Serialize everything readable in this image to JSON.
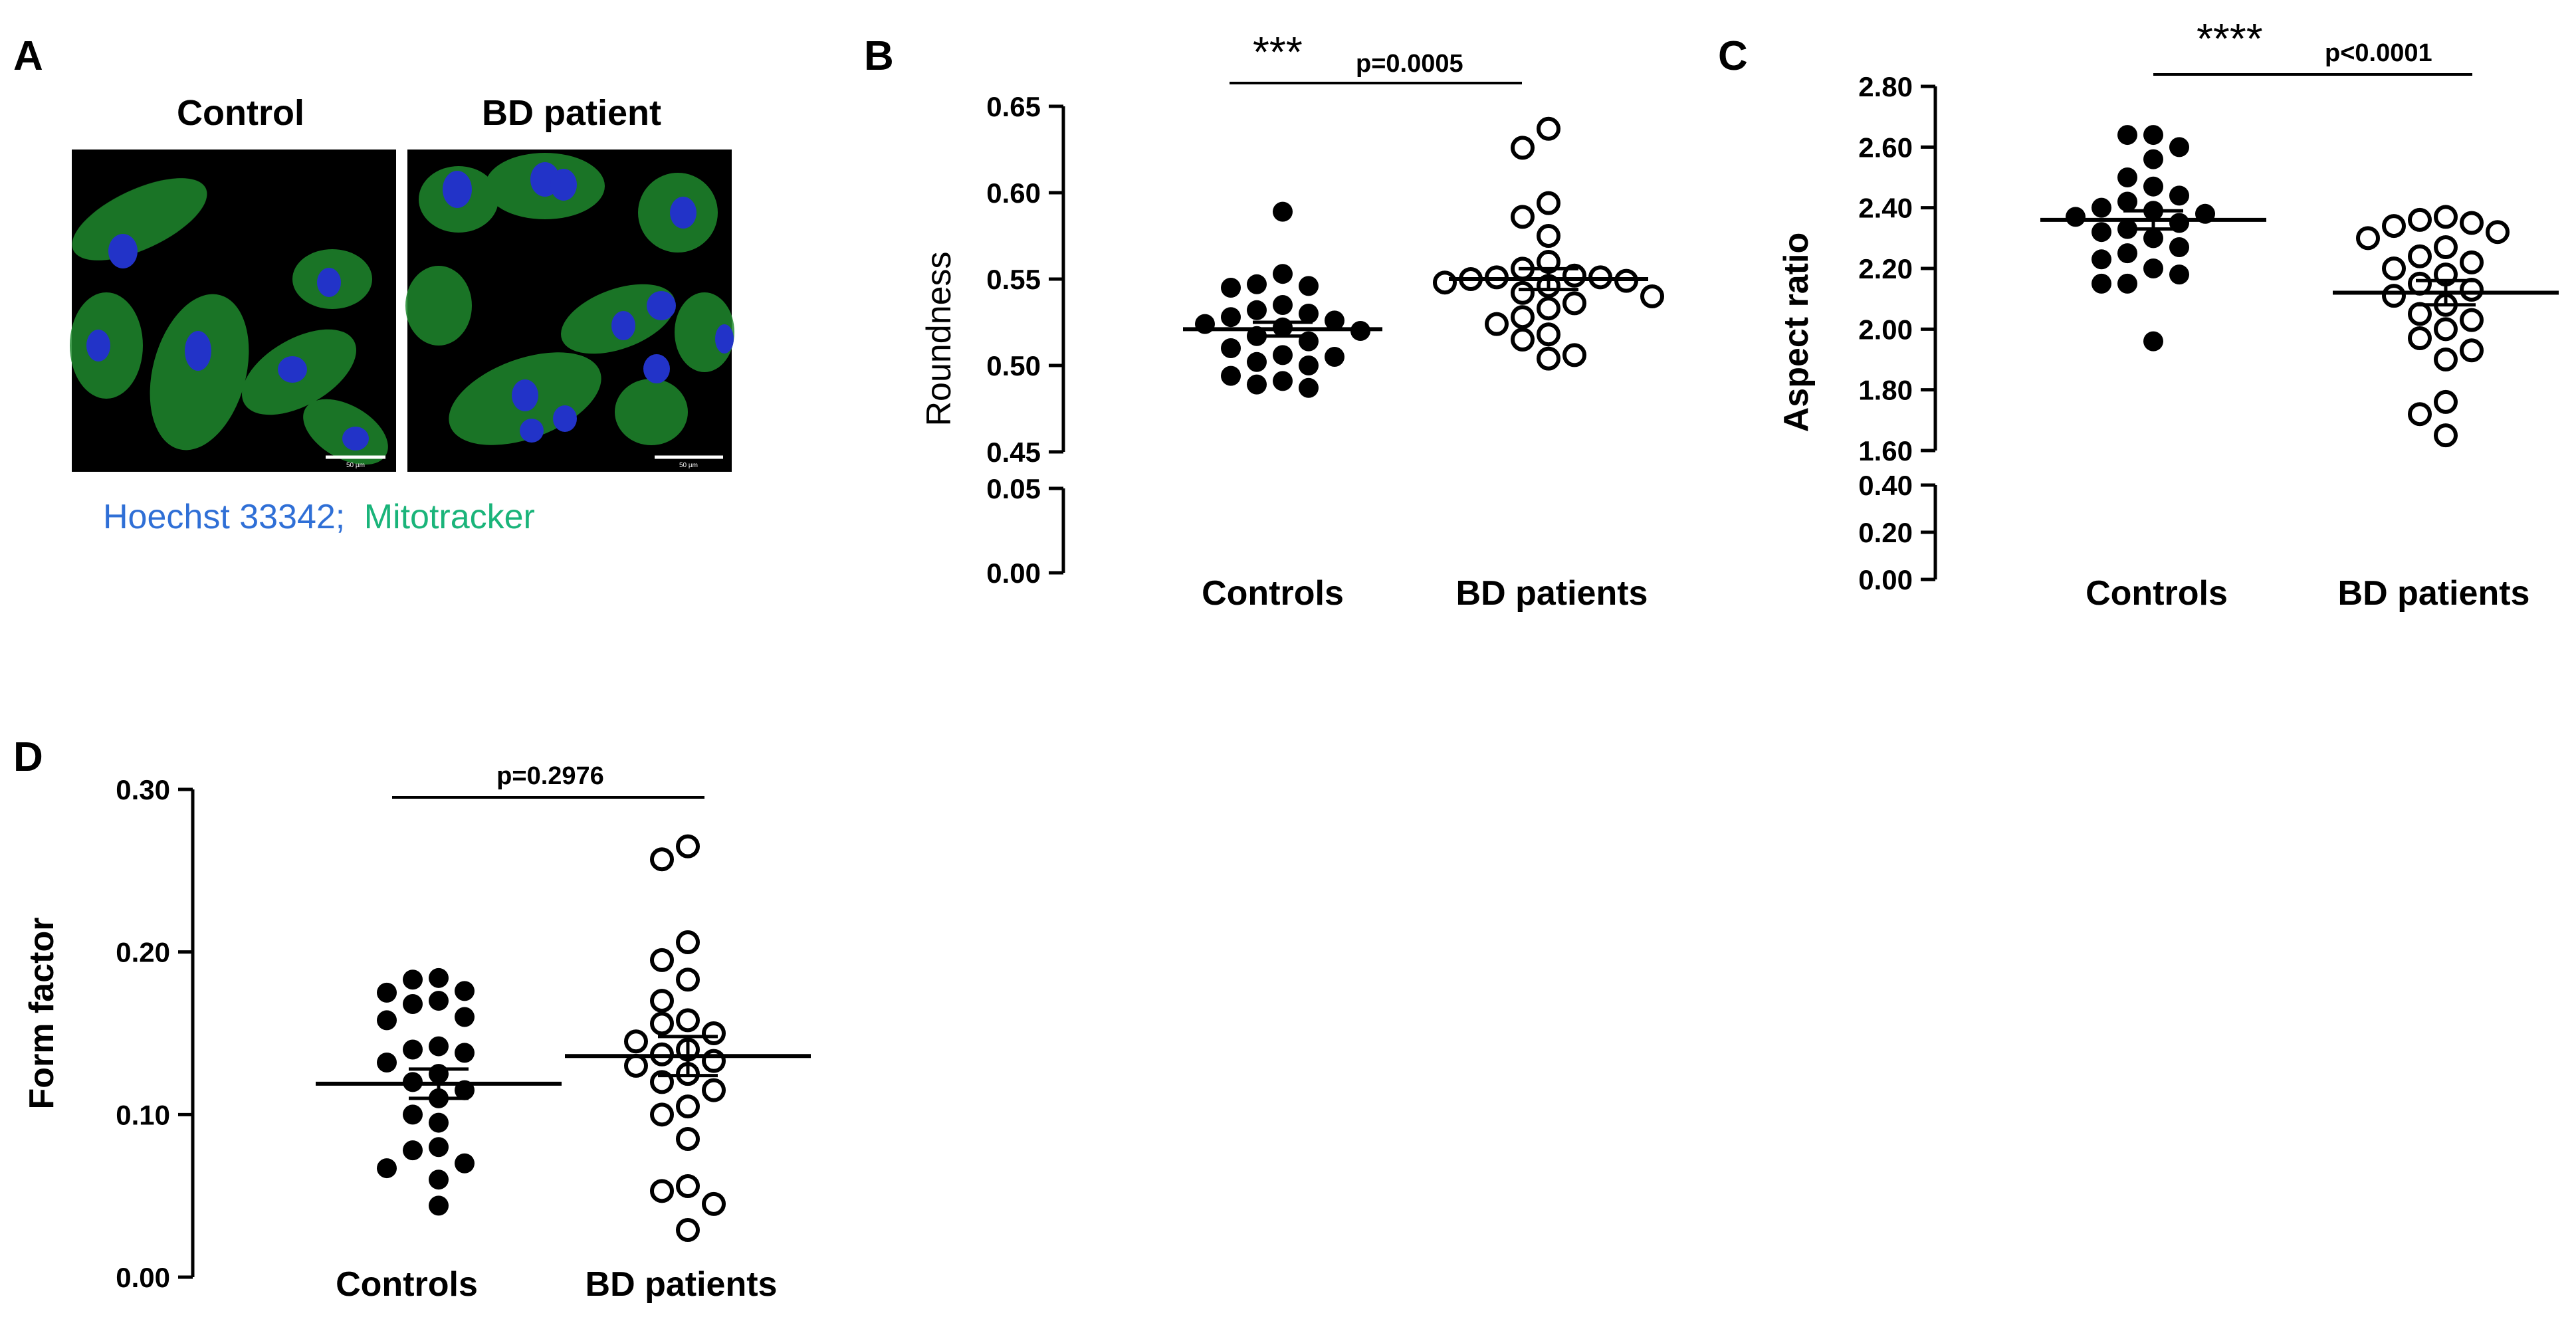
{
  "panel_a": {
    "letter": "A",
    "title_left": "Control",
    "title_right": "BD patient",
    "scale_label": "50 µm",
    "legend_blue": "Hoechst 33342;",
    "legend_green": "Mitotracker",
    "colors": {
      "blue": "#2f6fd6",
      "green": "#1ab47a",
      "background": "#000000",
      "cell": "#1f8a2e",
      "nucleus": "#2233c8"
    }
  },
  "chart_data": [
    {
      "id": "B",
      "letter": "B",
      "type": "scatter",
      "ylabel": "Roundness",
      "categories": [
        "Controls",
        "BD patients"
      ],
      "y_axis_segments": [
        {
          "range": [
            0.45,
            0.65
          ],
          "ticks": [
            "0.45",
            "0.50",
            "0.55",
            "0.60",
            "0.65"
          ]
        },
        {
          "range": [
            0.0,
            0.05
          ],
          "ticks": [
            "0.00",
            "0.05"
          ]
        }
      ],
      "series": [
        {
          "category": "Controls",
          "marker": "filled",
          "mean": 0.521,
          "sem": 0.004,
          "values": [
            0.589,
            0.553,
            0.547,
            0.546,
            0.545,
            0.535,
            0.532,
            0.53,
            0.528,
            0.526,
            0.524,
            0.522,
            0.52,
            0.517,
            0.514,
            0.51,
            0.506,
            0.505,
            0.502,
            0.5,
            0.494,
            0.491,
            0.489,
            0.487
          ]
        },
        {
          "category": "BD patients",
          "marker": "open",
          "mean": 0.55,
          "sem": 0.006,
          "values": [
            0.637,
            0.626,
            0.594,
            0.586,
            0.575,
            0.56,
            0.556,
            0.552,
            0.551,
            0.551,
            0.55,
            0.549,
            0.548,
            0.546,
            0.542,
            0.54,
            0.536,
            0.533,
            0.528,
            0.524,
            0.518,
            0.515,
            0.506,
            0.504
          ]
        }
      ],
      "significance": {
        "stars": "***",
        "p": "p=0.0005"
      }
    },
    {
      "id": "C",
      "letter": "C",
      "type": "scatter",
      "ylabel": "Aspect ratio",
      "categories": [
        "Controls",
        "BD patients"
      ],
      "y_axis_segments": [
        {
          "range": [
            1.6,
            2.8
          ],
          "ticks": [
            "1.60",
            "1.80",
            "2.00",
            "2.20",
            "2.40",
            "2.60",
            "2.80"
          ]
        },
        {
          "range": [
            0.0,
            0.4
          ],
          "ticks": [
            "0.00",
            "0.20",
            "0.40"
          ]
        }
      ],
      "series": [
        {
          "category": "Controls",
          "marker": "filled",
          "mean": 2.36,
          "sem": 0.03,
          "values": [
            2.64,
            2.64,
            2.6,
            2.56,
            2.5,
            2.47,
            2.44,
            2.42,
            2.4,
            2.39,
            2.38,
            2.37,
            2.35,
            2.33,
            2.32,
            2.3,
            2.27,
            2.25,
            2.23,
            2.2,
            2.18,
            2.15,
            2.15,
            1.96
          ]
        },
        {
          "category": "BD patients",
          "marker": "open",
          "mean": 2.12,
          "sem": 0.04,
          "values": [
            2.37,
            2.36,
            2.35,
            2.34,
            2.32,
            2.3,
            2.27,
            2.24,
            2.22,
            2.2,
            2.18,
            2.15,
            2.13,
            2.11,
            2.08,
            2.05,
            2.03,
            2.0,
            1.97,
            1.93,
            1.9,
            1.76,
            1.72,
            1.65
          ]
        }
      ],
      "significance": {
        "stars": "****",
        "p": "p<0.0001"
      }
    },
    {
      "id": "D",
      "letter": "D",
      "type": "scatter",
      "ylabel": "Form factor",
      "categories": [
        "Controls",
        "BD patients"
      ],
      "ylim": [
        0.0,
        0.3
      ],
      "ticks": [
        "0.00",
        "0.10",
        "0.20",
        "0.30"
      ],
      "series": [
        {
          "category": "Controls",
          "marker": "filled",
          "mean": 0.119,
          "sem": 0.009,
          "values": [
            0.184,
            0.183,
            0.176,
            0.175,
            0.17,
            0.168,
            0.16,
            0.158,
            0.142,
            0.14,
            0.138,
            0.132,
            0.125,
            0.12,
            0.115,
            0.11,
            0.1,
            0.095,
            0.08,
            0.078,
            0.07,
            0.067,
            0.06,
            0.044
          ]
        },
        {
          "category": "BD patients",
          "marker": "open",
          "mean": 0.136,
          "sem": 0.012,
          "values": [
            0.265,
            0.257,
            0.206,
            0.195,
            0.183,
            0.17,
            0.158,
            0.156,
            0.15,
            0.145,
            0.14,
            0.137,
            0.133,
            0.13,
            0.125,
            0.12,
            0.115,
            0.105,
            0.1,
            0.085,
            0.056,
            0.053,
            0.045,
            0.029
          ]
        }
      ],
      "significance": {
        "stars": "",
        "p": "p=0.2976"
      }
    }
  ]
}
